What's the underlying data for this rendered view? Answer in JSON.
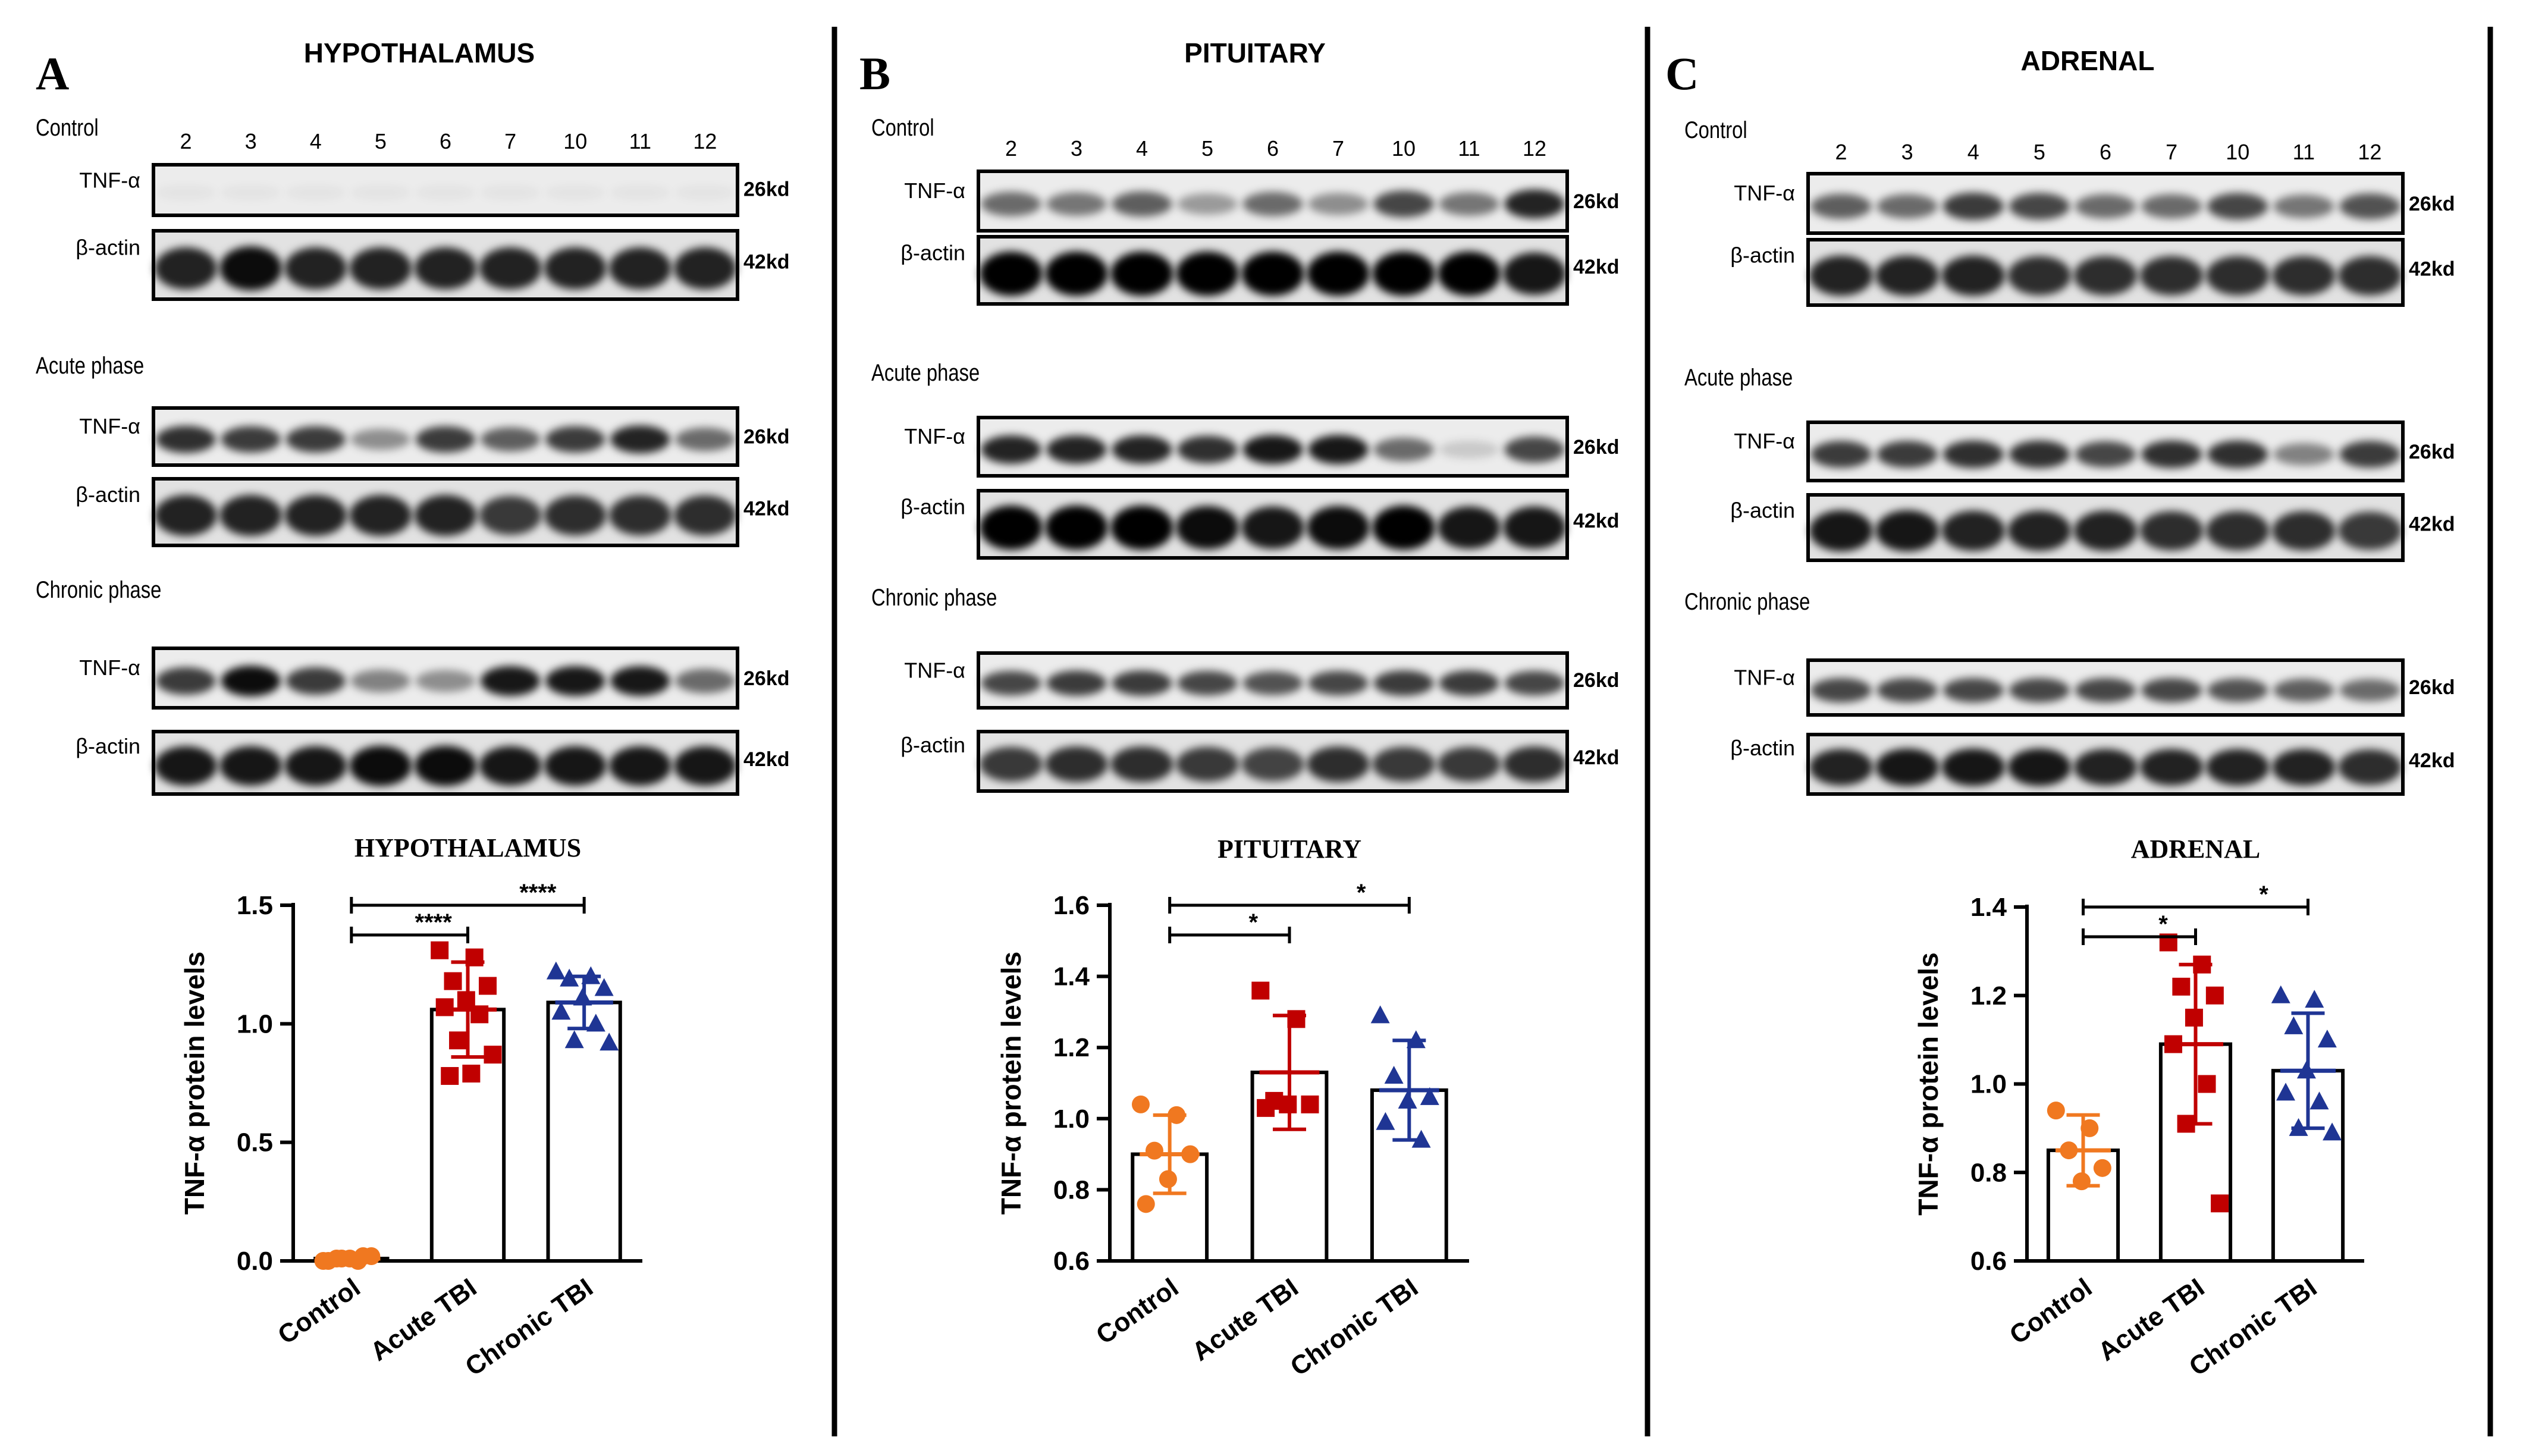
{
  "lane_labels": [
    "2",
    "3",
    "4",
    "5",
    "6",
    "7",
    "10",
    "11",
    "12"
  ],
  "band_labels": {
    "tnf": "TNF-α",
    "actin": "β-actin",
    "kd26": "26kd",
    "kd42": "42kd"
  },
  "colors": {
    "control": "#f07820",
    "acute": "#c00000",
    "chronic": "#1f3594",
    "border": "#000000"
  },
  "panels": [
    {
      "letter": "A",
      "title": "HYPOTHALAMUS",
      "blots": [
        {
          "label": "Control",
          "tnf_int": [
            0.04,
            0.04,
            0.04,
            0.04,
            0.04,
            0.04,
            0.04,
            0.04,
            0.04
          ],
          "actin_int": [
            0.85,
            0.95,
            0.85,
            0.85,
            0.85,
            0.85,
            0.85,
            0.85,
            0.85
          ]
        },
        {
          "label": "Acute phase",
          "tnf_int": [
            0.8,
            0.75,
            0.75,
            0.4,
            0.75,
            0.6,
            0.75,
            0.85,
            0.55
          ],
          "actin_int": [
            0.85,
            0.85,
            0.85,
            0.85,
            0.85,
            0.75,
            0.8,
            0.8,
            0.8
          ]
        },
        {
          "label": "Chronic phase",
          "tnf_int": [
            0.75,
            0.95,
            0.75,
            0.45,
            0.4,
            0.9,
            0.9,
            0.9,
            0.55
          ],
          "actin_int": [
            0.9,
            0.9,
            0.9,
            0.95,
            0.95,
            0.9,
            0.9,
            0.9,
            0.9
          ]
        }
      ],
      "chart_data": {
        "type": "bar",
        "title": "HYPOTHALAMUS",
        "ylabel": "TNF-α protein levels",
        "categories": [
          "Control",
          "Acute TBI",
          "Chronic TBI"
        ],
        "values": [
          0.01,
          1.06,
          1.09
        ],
        "errors": [
          0.01,
          0.2,
          0.11
        ],
        "ylim": [
          0.0,
          1.5
        ],
        "yticks": [
          0.0,
          0.5,
          1.0,
          1.5
        ],
        "ytick_labels": [
          "0.0",
          "0.5",
          "1.0",
          "1.5"
        ],
        "points": [
          [
            0.0,
            0.0,
            0.01,
            0.02,
            0.01,
            0.0,
            0.02,
            0.01
          ],
          [
            1.31,
            1.28,
            1.18,
            1.16,
            1.1,
            1.07,
            1.04,
            0.93,
            0.87,
            0.79,
            0.78
          ],
          [
            1.22,
            1.2,
            1.19,
            1.15,
            1.11,
            1.05,
            1.0,
            0.93,
            0.92
          ]
        ],
        "significance": [
          {
            "from": 0,
            "to": 1,
            "label": "****"
          },
          {
            "from": 0,
            "to": 2,
            "label": "****"
          }
        ]
      }
    },
    {
      "letter": "B",
      "title": "PITUITARY",
      "blots": [
        {
          "label": "Control",
          "tnf_int": [
            0.55,
            0.5,
            0.6,
            0.35,
            0.55,
            0.4,
            0.7,
            0.5,
            0.85
          ],
          "actin_int": [
            1.0,
            1.0,
            1.0,
            1.0,
            1.0,
            1.0,
            1.0,
            1.0,
            0.9
          ]
        },
        {
          "label": "Acute phase",
          "tnf_int": [
            0.85,
            0.85,
            0.85,
            0.8,
            0.9,
            0.9,
            0.55,
            0.15,
            0.7
          ],
          "actin_int": [
            1.0,
            1.0,
            1.0,
            0.95,
            0.9,
            0.95,
            1.0,
            0.9,
            0.9
          ]
        },
        {
          "label": "Chronic phase",
          "tnf_int": [
            0.7,
            0.75,
            0.75,
            0.7,
            0.65,
            0.7,
            0.75,
            0.75,
            0.7
          ],
          "actin_int": [
            0.75,
            0.8,
            0.8,
            0.75,
            0.7,
            0.8,
            0.75,
            0.75,
            0.8
          ]
        }
      ],
      "chart_data": {
        "type": "bar",
        "title": "PITUITARY",
        "ylabel": "TNF-α protein levels",
        "categories": [
          "Control",
          "Acute TBI",
          "Chronic TBI"
        ],
        "values": [
          0.9,
          1.13,
          1.08
        ],
        "errors": [
          0.11,
          0.16,
          0.14
        ],
        "ylim": [
          0.6,
          1.6
        ],
        "yticks": [
          0.6,
          0.8,
          1.0,
          1.2,
          1.4,
          1.6
        ],
        "ytick_labels": [
          "0.6",
          "0.8",
          "1.0",
          "1.2",
          "1.4",
          "1.6"
        ],
        "points": [
          [
            1.04,
            1.01,
            0.91,
            0.9,
            0.83,
            0.76
          ],
          [
            1.36,
            1.28,
            1.05,
            1.04,
            1.04,
            1.03
          ],
          [
            1.29,
            1.22,
            1.12,
            1.06,
            1.05,
            0.99,
            0.94
          ]
        ],
        "significance": [
          {
            "from": 0,
            "to": 1,
            "label": "*"
          },
          {
            "from": 0,
            "to": 2,
            "label": "*"
          }
        ]
      }
    },
    {
      "letter": "C",
      "title": "ADRENAL",
      "blots": [
        {
          "label": "Control",
          "tnf_int": [
            0.6,
            0.55,
            0.75,
            0.7,
            0.55,
            0.55,
            0.7,
            0.5,
            0.65
          ],
          "actin_int": [
            0.85,
            0.85,
            0.85,
            0.8,
            0.8,
            0.8,
            0.8,
            0.8,
            0.8
          ]
        },
        {
          "label": "Acute phase",
          "tnf_int": [
            0.75,
            0.75,
            0.8,
            0.8,
            0.7,
            0.8,
            0.8,
            0.45,
            0.75
          ],
          "actin_int": [
            0.9,
            0.9,
            0.85,
            0.85,
            0.85,
            0.8,
            0.8,
            0.8,
            0.75
          ]
        },
        {
          "label": "Chronic phase",
          "tnf_int": [
            0.7,
            0.7,
            0.7,
            0.7,
            0.7,
            0.7,
            0.65,
            0.6,
            0.55
          ],
          "actin_int": [
            0.85,
            0.9,
            0.9,
            0.9,
            0.85,
            0.85,
            0.85,
            0.85,
            0.8
          ]
        }
      ],
      "chart_data": {
        "type": "bar",
        "title": "ADRENAL",
        "ylabel": "TNF-α protein levels",
        "categories": [
          "Control",
          "Acute TBI",
          "Chronic TBI"
        ],
        "values": [
          0.85,
          1.09,
          1.03
        ],
        "errors": [
          0.08,
          0.18,
          0.13
        ],
        "ylim": [
          0.6,
          1.4
        ],
        "yticks": [
          0.6,
          0.8,
          1.0,
          1.2,
          1.4
        ],
        "ytick_labels": [
          "0.6",
          "0.8",
          "1.0",
          "1.2",
          "1.4"
        ],
        "points": [
          [
            0.94,
            0.9,
            0.85,
            0.81,
            0.78
          ],
          [
            1.32,
            1.27,
            1.22,
            1.2,
            1.15,
            1.09,
            1.0,
            0.91,
            0.73
          ],
          [
            1.2,
            1.19,
            1.13,
            1.1,
            1.03,
            0.98,
            0.96,
            0.9,
            0.89
          ]
        ],
        "significance": [
          {
            "from": 0,
            "to": 1,
            "label": "*"
          },
          {
            "from": 0,
            "to": 2,
            "label": "*"
          }
        ]
      }
    }
  ]
}
